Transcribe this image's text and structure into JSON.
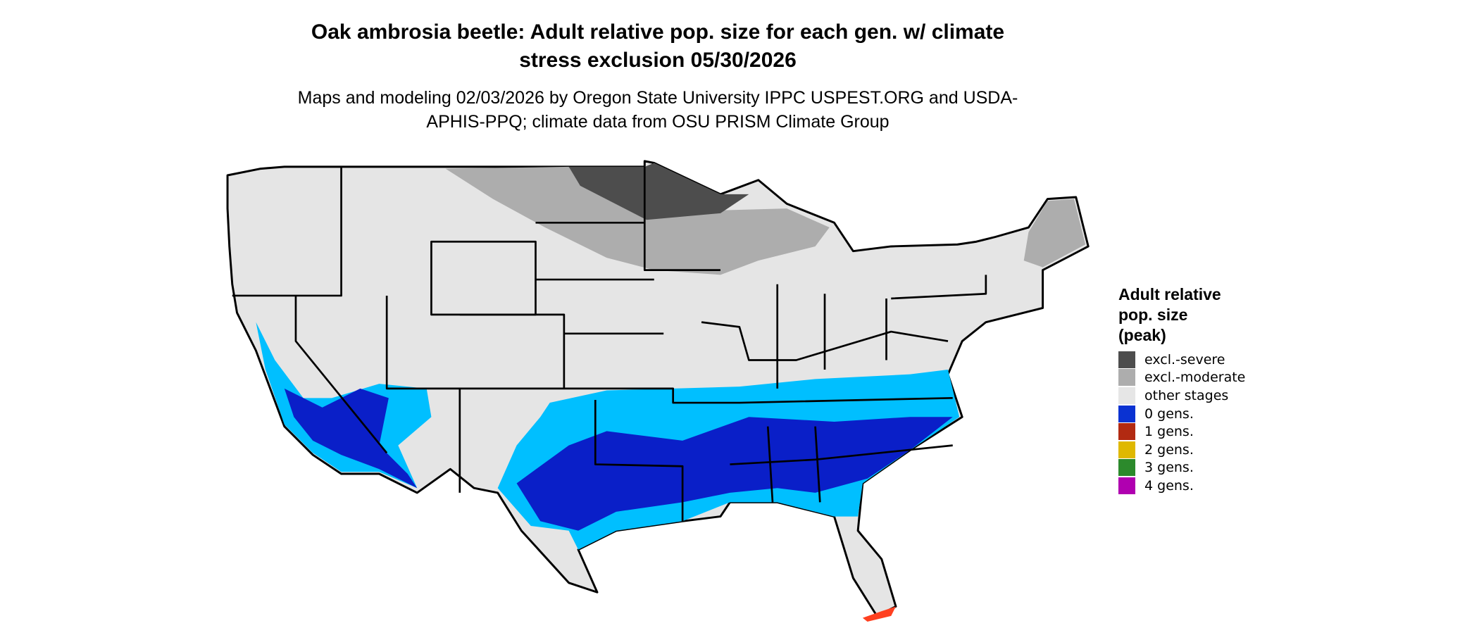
{
  "header": {
    "title": "Oak ambrosia beetle: Adult relative pop. size for each gen. w/ climate stress exclusion 05/30/2026",
    "subtitle": "Maps and modeling 02/03/2026 by Oregon State University IPPC USPEST.ORG and USDA-APHIS-PPQ; climate data from OSU PRISM Climate Group"
  },
  "legend": {
    "title": "Adult relative pop. size (peak)",
    "items": [
      {
        "label": "excl.-severe",
        "color": "#4d4d4d"
      },
      {
        "label": "excl.-moderate",
        "color": "#adadad"
      },
      {
        "label": "other stages",
        "color": "#e6e6e6"
      },
      {
        "label": "0 gens.",
        "color": "#0a32d2"
      },
      {
        "label": "1 gens.",
        "color": "#b22a12"
      },
      {
        "label": "2 gens.",
        "color": "#dfb800"
      },
      {
        "label": "3 gens.",
        "color": "#2c8a2c"
      },
      {
        "label": "4 gens.",
        "color": "#b000b0"
      }
    ]
  }
}
